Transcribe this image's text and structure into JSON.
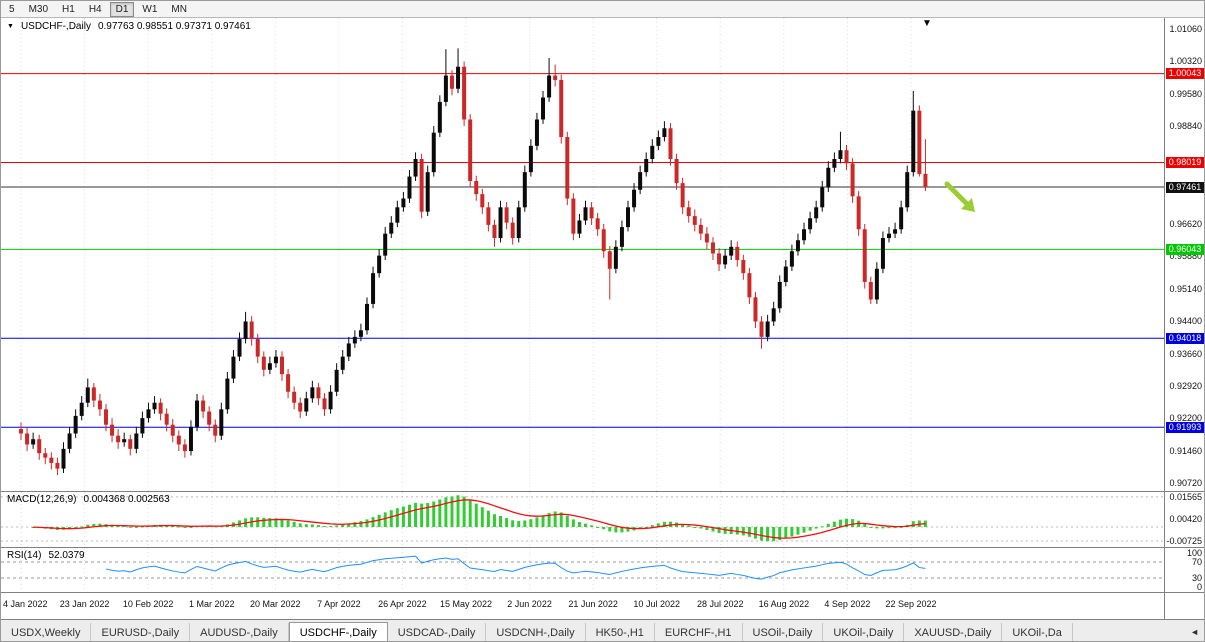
{
  "icons": {
    "caret_down": "▼",
    "chart_marker": "▼",
    "scroll_left": "◄"
  },
  "toolbar": {
    "timeframes": [
      "5",
      "M30",
      "H1",
      "H4",
      "D1",
      "W1",
      "MN"
    ],
    "active_timeframe": "D1"
  },
  "chart": {
    "symbol_label": "USDCHF-,Daily",
    "ohlc_text": "0.97763 0.98551 0.97371 0.97461",
    "price_axis_ticks": [
      "1.01060",
      "1.00320",
      "0.99580",
      "0.98840",
      "0.98100",
      "0.97360",
      "0.96620",
      "0.95880",
      "0.95140",
      "0.94400",
      "0.93660",
      "0.92920",
      "0.92200",
      "0.91460",
      "0.90720"
    ],
    "levels": [
      {
        "label": "1.00043",
        "value": 1.00043,
        "color": "#ee0000"
      },
      {
        "label": "0.98019",
        "value": 0.98019,
        "color": "#ee0000"
      },
      {
        "label": "0.97461",
        "value": 0.97461,
        "color": "#333333",
        "badge": "#111111"
      },
      {
        "label": "0.96043",
        "value": 0.96043,
        "color": "#00c800"
      },
      {
        "label": "0.94018",
        "value": 0.94018,
        "color": "#0000e0"
      },
      {
        "label": "0.91993",
        "value": 0.91993,
        "color": "#0000e0"
      }
    ],
    "arrow_color": "#9acd32"
  },
  "chart_data": {
    "type": "candlestick",
    "symbol": "USDCHF",
    "timeframe": "Daily",
    "price_range": [
      0.9072,
      1.0106
    ],
    "x_tick_labels": [
      "4 Jan 2022",
      "23 Jan 2022",
      "10 Feb 2022",
      "1 Mar 2022",
      "20 Mar 2022",
      "7 Apr 2022",
      "26 Apr 2022",
      "15 May 2022",
      "2 Jun 2022",
      "21 Jun 2022",
      "10 Jul 2022",
      "28 Jul 2022",
      "16 Aug 2022",
      "4 Sep 2022",
      "22 Sep 2022"
    ],
    "colors": {
      "bull": "#0a0a0a",
      "bear": "#cc2828"
    },
    "candles": [
      [
        0.9195,
        0.921,
        0.917,
        0.9185
      ],
      [
        0.9185,
        0.92,
        0.9145,
        0.916
      ],
      [
        0.916,
        0.9187,
        0.915,
        0.9172
      ],
      [
        0.9172,
        0.9182,
        0.9125,
        0.914
      ],
      [
        0.914,
        0.9152,
        0.9115,
        0.913
      ],
      [
        0.913,
        0.9142,
        0.9103,
        0.9118
      ],
      [
        0.9118,
        0.913,
        0.909,
        0.9105
      ],
      [
        0.9105,
        0.9165,
        0.9095,
        0.915
      ],
      [
        0.915,
        0.92,
        0.914,
        0.9185
      ],
      [
        0.9185,
        0.924,
        0.9175,
        0.9225
      ],
      [
        0.9225,
        0.927,
        0.9215,
        0.9255
      ],
      [
        0.9255,
        0.931,
        0.9245,
        0.929
      ],
      [
        0.929,
        0.93,
        0.9245,
        0.926
      ],
      [
        0.926,
        0.9275,
        0.9225,
        0.924
      ],
      [
        0.924,
        0.9252,
        0.919,
        0.9205
      ],
      [
        0.9205,
        0.922,
        0.9165,
        0.918
      ],
      [
        0.918,
        0.9195,
        0.915,
        0.9165
      ],
      [
        0.9165,
        0.9187,
        0.9155,
        0.9172
      ],
      [
        0.9172,
        0.9182,
        0.9135,
        0.915
      ],
      [
        0.915,
        0.92,
        0.914,
        0.9185
      ],
      [
        0.9185,
        0.9235,
        0.9175,
        0.922
      ],
      [
        0.922,
        0.9255,
        0.921,
        0.924
      ],
      [
        0.924,
        0.927,
        0.923,
        0.9255
      ],
      [
        0.9255,
        0.9265,
        0.9215,
        0.923
      ],
      [
        0.923,
        0.9242,
        0.919,
        0.9205
      ],
      [
        0.9205,
        0.9218,
        0.9165,
        0.918
      ],
      [
        0.918,
        0.9192,
        0.9145,
        0.916
      ],
      [
        0.916,
        0.9172,
        0.913,
        0.9145
      ],
      [
        0.9145,
        0.9215,
        0.9135,
        0.92
      ],
      [
        0.92,
        0.9275,
        0.919,
        0.926
      ],
      [
        0.926,
        0.9272,
        0.922,
        0.9235
      ],
      [
        0.9235,
        0.9247,
        0.919,
        0.9205
      ],
      [
        0.9205,
        0.9217,
        0.9165,
        0.918
      ],
      [
        0.918,
        0.9255,
        0.917,
        0.924
      ],
      [
        0.924,
        0.9325,
        0.923,
        0.931
      ],
      [
        0.931,
        0.9375,
        0.93,
        0.936
      ],
      [
        0.936,
        0.9415,
        0.935,
        0.94
      ],
      [
        0.94,
        0.9462,
        0.939,
        0.944
      ],
      [
        0.944,
        0.9452,
        0.9385,
        0.94
      ],
      [
        0.94,
        0.9412,
        0.9345,
        0.936
      ],
      [
        0.936,
        0.9372,
        0.9315,
        0.933
      ],
      [
        0.933,
        0.936,
        0.932,
        0.9345
      ],
      [
        0.9345,
        0.9375,
        0.9335,
        0.936
      ],
      [
        0.936,
        0.9372,
        0.9305,
        0.932
      ],
      [
        0.932,
        0.9332,
        0.9265,
        0.928
      ],
      [
        0.928,
        0.9292,
        0.924,
        0.9255
      ],
      [
        0.9255,
        0.9267,
        0.922,
        0.9235
      ],
      [
        0.9235,
        0.928,
        0.9225,
        0.9265
      ],
      [
        0.9265,
        0.9305,
        0.9255,
        0.929
      ],
      [
        0.929,
        0.93,
        0.925,
        0.9265
      ],
      [
        0.9265,
        0.9277,
        0.9225,
        0.924
      ],
      [
        0.924,
        0.9295,
        0.923,
        0.928
      ],
      [
        0.928,
        0.9345,
        0.927,
        0.933
      ],
      [
        0.933,
        0.9375,
        0.932,
        0.936
      ],
      [
        0.936,
        0.9405,
        0.935,
        0.939
      ],
      [
        0.939,
        0.942,
        0.938,
        0.9405
      ],
      [
        0.9405,
        0.9435,
        0.9395,
        0.942
      ],
      [
        0.942,
        0.9495,
        0.941,
        0.948
      ],
      [
        0.948,
        0.9565,
        0.947,
        0.955
      ],
      [
        0.955,
        0.9605,
        0.954,
        0.959
      ],
      [
        0.959,
        0.9655,
        0.958,
        0.964
      ],
      [
        0.964,
        0.968,
        0.963,
        0.9665
      ],
      [
        0.9665,
        0.9715,
        0.9655,
        0.97
      ],
      [
        0.97,
        0.9735,
        0.969,
        0.972
      ],
      [
        0.972,
        0.9785,
        0.971,
        0.977
      ],
      [
        0.977,
        0.9825,
        0.976,
        0.981
      ],
      [
        0.981,
        0.9822,
        0.9675,
        0.969
      ],
      [
        0.969,
        0.9795,
        0.968,
        0.978
      ],
      [
        0.978,
        0.9885,
        0.977,
        0.987
      ],
      [
        0.987,
        0.9955,
        0.986,
        0.994
      ],
      [
        0.994,
        1.006,
        0.993,
        1.0
      ],
      [
        1.0,
        1.0012,
        0.9955,
        0.997
      ],
      [
        0.997,
        1.0062,
        0.996,
        1.002
      ],
      [
        1.002,
        1.0032,
        0.9885,
        0.99
      ],
      [
        0.99,
        0.9912,
        0.9745,
        0.976
      ],
      [
        0.976,
        0.9772,
        0.9715,
        0.973
      ],
      [
        0.973,
        0.9742,
        0.9685,
        0.97
      ],
      [
        0.97,
        0.9712,
        0.9645,
        0.966
      ],
      [
        0.966,
        0.9672,
        0.961,
        0.963
      ],
      [
        0.963,
        0.9715,
        0.962,
        0.97
      ],
      [
        0.97,
        0.9712,
        0.965,
        0.9665
      ],
      [
        0.9665,
        0.9677,
        0.9615,
        0.963
      ],
      [
        0.963,
        0.9715,
        0.962,
        0.97
      ],
      [
        0.97,
        0.9795,
        0.969,
        0.978
      ],
      [
        0.978,
        0.9855,
        0.977,
        0.984
      ],
      [
        0.984,
        0.9915,
        0.983,
        0.99
      ],
      [
        0.99,
        0.9965,
        0.989,
        0.995
      ],
      [
        0.995,
        1.004,
        0.994,
        1.0
      ],
      [
        1.0,
        1.0025,
        0.9975,
        0.999
      ],
      [
        0.999,
        1.0002,
        0.9845,
        0.986
      ],
      [
        0.986,
        0.9872,
        0.9705,
        0.972
      ],
      [
        0.972,
        0.9732,
        0.9625,
        0.964
      ],
      [
        0.964,
        0.9685,
        0.963,
        0.967
      ],
      [
        0.967,
        0.9715,
        0.966,
        0.97
      ],
      [
        0.97,
        0.9712,
        0.966,
        0.9675
      ],
      [
        0.9675,
        0.9687,
        0.9635,
        0.965
      ],
      [
        0.965,
        0.9662,
        0.9585,
        0.96
      ],
      [
        0.96,
        0.9612,
        0.949,
        0.956
      ],
      [
        0.956,
        0.9625,
        0.955,
        0.961
      ],
      [
        0.961,
        0.967,
        0.96,
        0.9655
      ],
      [
        0.9655,
        0.9715,
        0.9645,
        0.97
      ],
      [
        0.97,
        0.9755,
        0.969,
        0.974
      ],
      [
        0.974,
        0.9795,
        0.973,
        0.978
      ],
      [
        0.978,
        0.9825,
        0.977,
        0.981
      ],
      [
        0.981,
        0.9855,
        0.98,
        0.984
      ],
      [
        0.984,
        0.9875,
        0.983,
        0.986
      ],
      [
        0.986,
        0.9896,
        0.985,
        0.988
      ],
      [
        0.988,
        0.9892,
        0.9795,
        0.981
      ],
      [
        0.981,
        0.9822,
        0.974,
        0.9755
      ],
      [
        0.9755,
        0.9767,
        0.9685,
        0.97
      ],
      [
        0.97,
        0.9715,
        0.9665,
        0.968
      ],
      [
        0.968,
        0.9695,
        0.9645,
        0.966
      ],
      [
        0.966,
        0.9675,
        0.9625,
        0.964
      ],
      [
        0.964,
        0.9655,
        0.9605,
        0.962
      ],
      [
        0.962,
        0.9632,
        0.958,
        0.9595
      ],
      [
        0.9595,
        0.9607,
        0.9555,
        0.957
      ],
      [
        0.957,
        0.9605,
        0.956,
        0.959
      ],
      [
        0.959,
        0.9625,
        0.958,
        0.961
      ],
      [
        0.961,
        0.9622,
        0.9565,
        0.958
      ],
      [
        0.958,
        0.9592,
        0.9535,
        0.955
      ],
      [
        0.955,
        0.9562,
        0.948,
        0.9495
      ],
      [
        0.9495,
        0.9507,
        0.9425,
        0.944
      ],
      [
        0.944,
        0.9452,
        0.9378,
        0.9405
      ],
      [
        0.9405,
        0.9455,
        0.9395,
        0.944
      ],
      [
        0.944,
        0.9485,
        0.943,
        0.947
      ],
      [
        0.947,
        0.9545,
        0.946,
        0.953
      ],
      [
        0.953,
        0.958,
        0.952,
        0.9565
      ],
      [
        0.9565,
        0.9615,
        0.9555,
        0.96
      ],
      [
        0.96,
        0.964,
        0.959,
        0.9625
      ],
      [
        0.9625,
        0.9665,
        0.9615,
        0.965
      ],
      [
        0.965,
        0.969,
        0.964,
        0.9675
      ],
      [
        0.9675,
        0.9715,
        0.9665,
        0.97
      ],
      [
        0.97,
        0.976,
        0.969,
        0.9745
      ],
      [
        0.9745,
        0.9805,
        0.9735,
        0.979
      ],
      [
        0.979,
        0.9825,
        0.978,
        0.981
      ],
      [
        0.981,
        0.9872,
        0.98,
        0.983
      ],
      [
        0.983,
        0.9842,
        0.9785,
        0.98
      ],
      [
        0.98,
        0.9812,
        0.971,
        0.9725
      ],
      [
        0.9725,
        0.9737,
        0.9635,
        0.965
      ],
      [
        0.965,
        0.9662,
        0.9515,
        0.953
      ],
      [
        0.953,
        0.9542,
        0.948,
        0.949
      ],
      [
        0.949,
        0.9575,
        0.948,
        0.956
      ],
      [
        0.956,
        0.9645,
        0.955,
        0.963
      ],
      [
        0.963,
        0.9655,
        0.962,
        0.964
      ],
      [
        0.964,
        0.9665,
        0.963,
        0.965
      ],
      [
        0.965,
        0.9715,
        0.964,
        0.97
      ],
      [
        0.97,
        0.9795,
        0.969,
        0.978
      ],
      [
        0.978,
        0.9965,
        0.977,
        0.992
      ],
      [
        0.992,
        0.9932,
        0.977,
        0.9776
      ],
      [
        0.97763,
        0.98551,
        0.97371,
        0.97461
      ]
    ]
  },
  "macd": {
    "label": "MACD(12,26,9)",
    "values": "0.004368 0.002563",
    "axis_labels": [
      "0.01565",
      "0.00420",
      "-0.00725"
    ],
    "axis_values": [
      0.01565,
      0.0042,
      -0.00725
    ],
    "histogram_color": "#33cc33",
    "signal_color": "#ee1111"
  },
  "rsi": {
    "label": "RSI(14)",
    "value": "52.0379",
    "axis_labels": [
      "100",
      "70",
      "30",
      "0"
    ],
    "axis_values": [
      100,
      70,
      30,
      0
    ],
    "levels": [
      70,
      30
    ],
    "line_color": "#1e90ff"
  },
  "tabs": {
    "items": [
      "USDX,Weekly",
      "EURUSD-,Daily",
      "AUDUSD-,Daily",
      "USDCHF-,Daily",
      "USDCAD-,Daily",
      "USDCNH-,Daily",
      "HK50-,H1",
      "EURCHF-,H1",
      "USOil-,Daily",
      "UKOil-,Daily",
      "XAUUSD-,Daily",
      "UKOil-,Da"
    ],
    "active_index": 3
  }
}
